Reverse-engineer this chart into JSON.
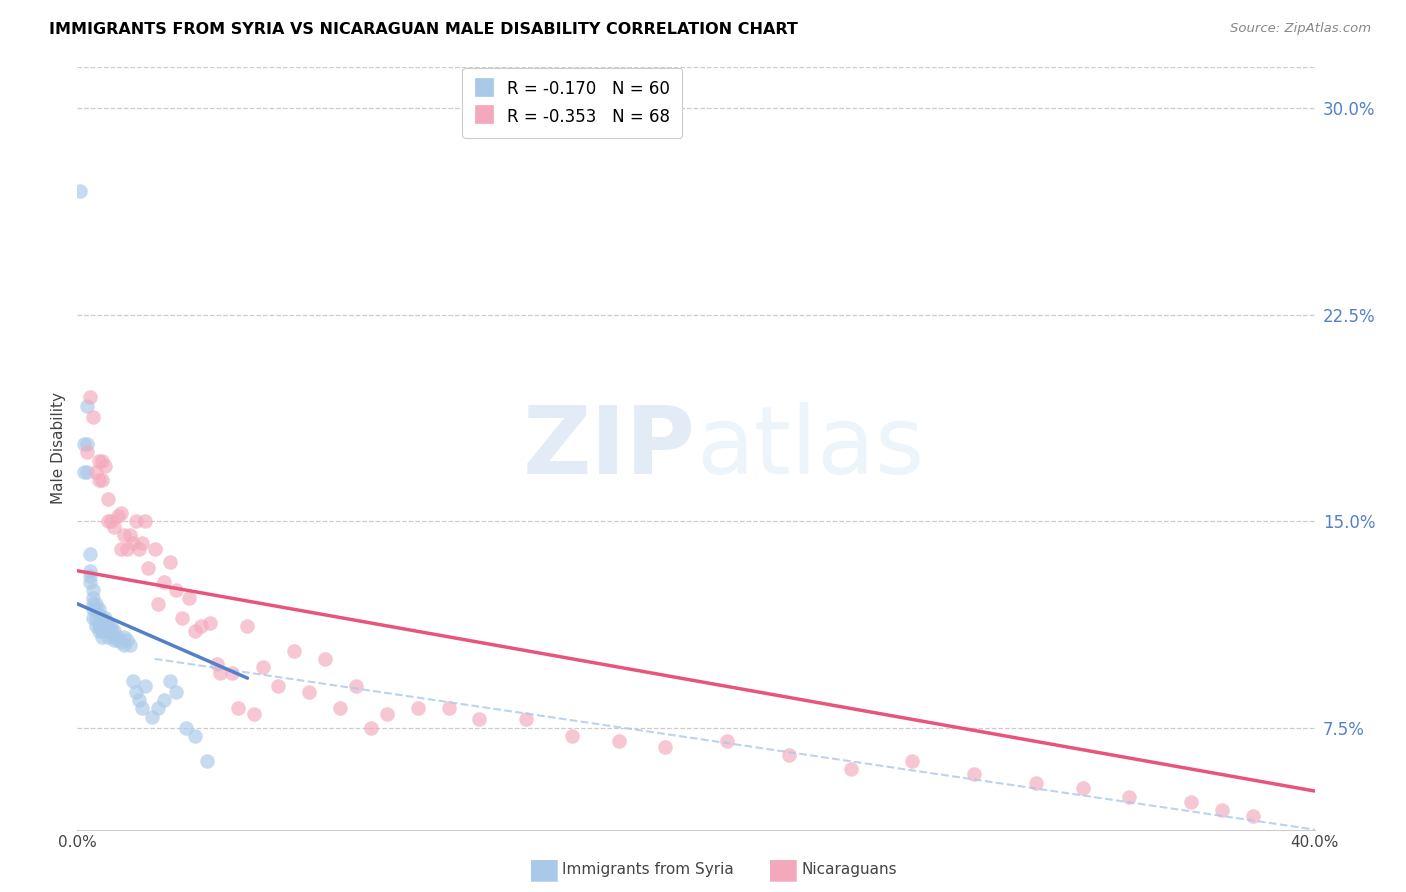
{
  "title": "IMMIGRANTS FROM SYRIA VS NICARAGUAN MALE DISABILITY CORRELATION CHART",
  "source": "Source: ZipAtlas.com",
  "ylabel": "Male Disability",
  "xlim": [
    0.0,
    0.4
  ],
  "ylim": [
    0.038,
    0.315
  ],
  "watermark_zip": "ZIP",
  "watermark_atlas": "atlas",
  "legend1_text": "R = -0.170   N = 60",
  "legend2_text": "R = -0.353   N = 68",
  "legend_label1": "Immigrants from Syria",
  "legend_label2": "Nicaraguans",
  "blue_color": "#aac9e8",
  "pink_color": "#f4a8bc",
  "blue_line_color": "#5580c8",
  "pink_line_color": "#e8557a",
  "dashed_line_color": "#aac9e8",
  "syria_points_x": [
    0.001,
    0.002,
    0.002,
    0.003,
    0.003,
    0.003,
    0.004,
    0.004,
    0.004,
    0.004,
    0.005,
    0.005,
    0.005,
    0.005,
    0.005,
    0.006,
    0.006,
    0.006,
    0.006,
    0.007,
    0.007,
    0.007,
    0.007,
    0.007,
    0.008,
    0.008,
    0.008,
    0.008,
    0.009,
    0.009,
    0.009,
    0.01,
    0.01,
    0.01,
    0.01,
    0.011,
    0.011,
    0.012,
    0.012,
    0.012,
    0.013,
    0.013,
    0.014,
    0.015,
    0.015,
    0.016,
    0.017,
    0.018,
    0.019,
    0.02,
    0.021,
    0.022,
    0.024,
    0.026,
    0.028,
    0.03,
    0.032,
    0.035,
    0.038,
    0.042
  ],
  "syria_points_y": [
    0.27,
    0.178,
    0.168,
    0.192,
    0.178,
    0.168,
    0.138,
    0.132,
    0.13,
    0.128,
    0.125,
    0.122,
    0.12,
    0.118,
    0.115,
    0.12,
    0.118,
    0.115,
    0.112,
    0.118,
    0.116,
    0.113,
    0.112,
    0.11,
    0.115,
    0.113,
    0.11,
    0.108,
    0.115,
    0.112,
    0.11,
    0.113,
    0.112,
    0.11,
    0.108,
    0.112,
    0.11,
    0.11,
    0.108,
    0.107,
    0.108,
    0.107,
    0.106,
    0.108,
    0.105,
    0.107,
    0.105,
    0.092,
    0.088,
    0.085,
    0.082,
    0.09,
    0.079,
    0.082,
    0.085,
    0.092,
    0.088,
    0.075,
    0.072,
    0.063
  ],
  "nicaragua_points_x": [
    0.003,
    0.004,
    0.005,
    0.006,
    0.007,
    0.007,
    0.008,
    0.008,
    0.009,
    0.01,
    0.01,
    0.011,
    0.012,
    0.013,
    0.014,
    0.014,
    0.015,
    0.016,
    0.017,
    0.018,
    0.019,
    0.02,
    0.021,
    0.022,
    0.023,
    0.025,
    0.026,
    0.028,
    0.03,
    0.032,
    0.034,
    0.036,
    0.038,
    0.04,
    0.043,
    0.046,
    0.05,
    0.055,
    0.06,
    0.065,
    0.07,
    0.08,
    0.09,
    0.1,
    0.11,
    0.12,
    0.13,
    0.145,
    0.16,
    0.175,
    0.19,
    0.21,
    0.23,
    0.25,
    0.27,
    0.29,
    0.31,
    0.325,
    0.34,
    0.36,
    0.37,
    0.38,
    0.045,
    0.052,
    0.057,
    0.075,
    0.085,
    0.095
  ],
  "nicaragua_points_y": [
    0.175,
    0.195,
    0.188,
    0.168,
    0.172,
    0.165,
    0.172,
    0.165,
    0.17,
    0.158,
    0.15,
    0.15,
    0.148,
    0.152,
    0.153,
    0.14,
    0.145,
    0.14,
    0.145,
    0.142,
    0.15,
    0.14,
    0.142,
    0.15,
    0.133,
    0.14,
    0.12,
    0.128,
    0.135,
    0.125,
    0.115,
    0.122,
    0.11,
    0.112,
    0.113,
    0.095,
    0.095,
    0.112,
    0.097,
    0.09,
    0.103,
    0.1,
    0.09,
    0.08,
    0.082,
    0.082,
    0.078,
    0.078,
    0.072,
    0.07,
    0.068,
    0.07,
    0.065,
    0.06,
    0.063,
    0.058,
    0.055,
    0.053,
    0.05,
    0.048,
    0.045,
    0.043,
    0.098,
    0.082,
    0.08,
    0.088,
    0.082,
    0.075
  ],
  "syria_line_x": [
    0.0,
    0.055
  ],
  "syria_line_y_start": 0.12,
  "syria_line_y_end": 0.093,
  "nicaragua_line_x": [
    0.0,
    0.4
  ],
  "nicaragua_line_y_start": 0.132,
  "nicaragua_line_y_end": 0.052,
  "dashed_line_x": [
    0.025,
    0.4
  ],
  "dashed_line_y_start": 0.1,
  "dashed_line_y_end": 0.038,
  "ytick_vals": [
    0.075,
    0.15,
    0.225,
    0.3
  ],
  "ytick_labels": [
    "7.5%",
    "15.0%",
    "22.5%",
    "30.0%"
  ]
}
